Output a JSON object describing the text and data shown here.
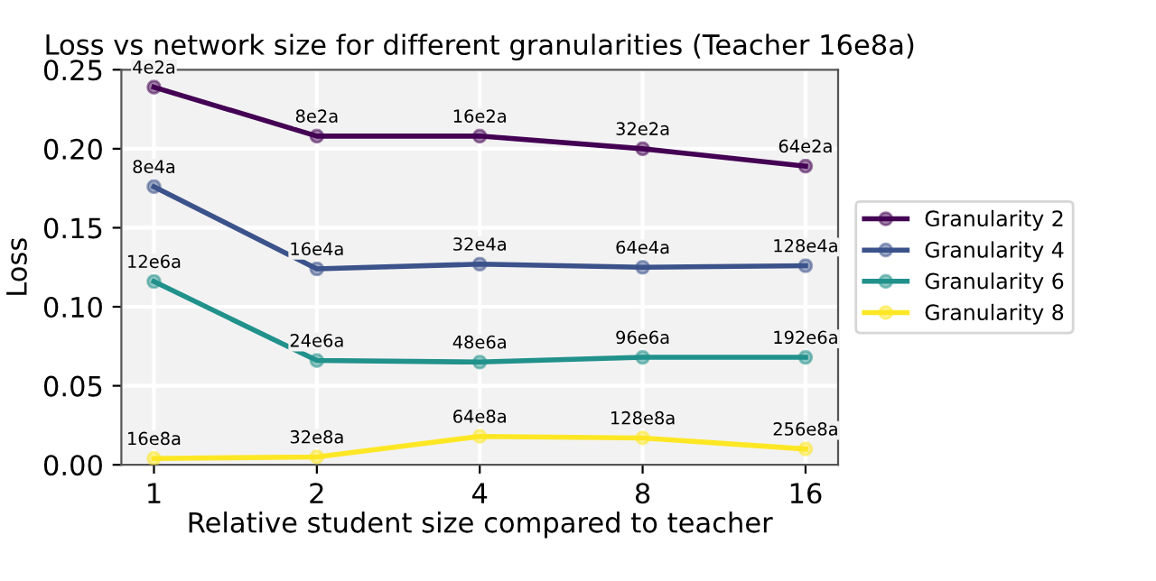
{
  "chart_data": {
    "type": "line",
    "title": "Loss vs network size for different granularities (Teacher 16e8a)",
    "xlabel": "Relative student size compared to teacher",
    "ylabel": "Loss",
    "categories": [
      "1",
      "2",
      "4",
      "8",
      "16"
    ],
    "ylim": [
      0,
      0.25
    ],
    "yticks": [
      {
        "value": 0,
        "label": "0.00"
      },
      {
        "value": 0.05,
        "label": "0.05"
      },
      {
        "value": 0.1,
        "label": "0.10"
      },
      {
        "value": 0.15,
        "label": "0.15"
      },
      {
        "value": 0.2,
        "label": "0.20"
      },
      {
        "value": 0.25,
        "label": "0.25"
      }
    ],
    "grid": true,
    "legend": "right",
    "marker": "circle",
    "line_style": "solid",
    "series": [
      {
        "name": "Granularity 2",
        "color": "#440154",
        "values": [
          0.239,
          0.208,
          0.208,
          0.2,
          0.189
        ]
      },
      {
        "name": "Granularity 4",
        "color": "#3b528b",
        "values": [
          0.176,
          0.124,
          0.127,
          0.125,
          0.126
        ]
      },
      {
        "name": "Granularity 6",
        "color": "#21918c",
        "values": [
          0.116,
          0.066,
          0.065,
          0.068,
          0.068
        ]
      },
      {
        "name": "Granularity 8",
        "color": "#fde725",
        "values": [
          0.004,
          0.005,
          0.018,
          0.017,
          0.01
        ]
      }
    ],
    "annotations": [
      {
        "text": "4e2a",
        "x": "1",
        "y": 0.239
      },
      {
        "text": "8e2a",
        "x": "2",
        "y": 0.208
      },
      {
        "text": "16e2a",
        "x": "4",
        "y": 0.208
      },
      {
        "text": "32e2a",
        "x": "8",
        "y": 0.2
      },
      {
        "text": "64e2a",
        "x": "16",
        "y": 0.189
      },
      {
        "text": "8e4a",
        "x": "1",
        "y": 0.176
      },
      {
        "text": "16e4a",
        "x": "2",
        "y": 0.124
      },
      {
        "text": "32e4a",
        "x": "4",
        "y": 0.127
      },
      {
        "text": "64e4a",
        "x": "8",
        "y": 0.125
      },
      {
        "text": "128e4a",
        "x": "16",
        "y": 0.126
      },
      {
        "text": "12e6a",
        "x": "1",
        "y": 0.116
      },
      {
        "text": "24e6a",
        "x": "2",
        "y": 0.066
      },
      {
        "text": "48e6a",
        "x": "4",
        "y": 0.065
      },
      {
        "text": "96e6a",
        "x": "8",
        "y": 0.068
      },
      {
        "text": "192e6a",
        "x": "16",
        "y": 0.068
      },
      {
        "text": "16e8a",
        "x": "1",
        "y": 0.004
      },
      {
        "text": "32e8a",
        "x": "2",
        "y": 0.005
      },
      {
        "text": "64e8a",
        "x": "4",
        "y": 0.018
      },
      {
        "text": "128e8a",
        "x": "8",
        "y": 0.017
      },
      {
        "text": "256e8a",
        "x": "16",
        "y": 0.01
      }
    ]
  }
}
